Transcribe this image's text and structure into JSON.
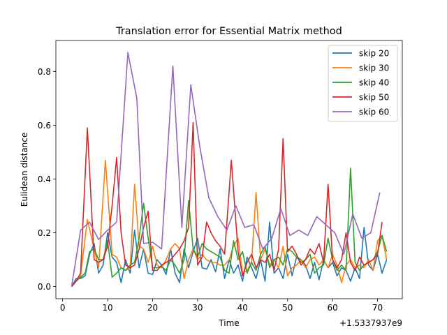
{
  "chart_data": {
    "type": "line",
    "title": "Translation error for Essential Matrix method",
    "xlabel": "Time",
    "ylabel": "Eulidean distance",
    "x_offset_text": "+1.5337937e9",
    "xlim": [
      -1.5,
      75.5
    ],
    "ylim": [
      -0.045,
      0.915
    ],
    "xticks": [
      0,
      10,
      20,
      30,
      40,
      50,
      60,
      70
    ],
    "yticks": [
      0.0,
      0.2,
      0.4,
      0.6,
      0.8
    ],
    "ytick_labels": [
      "0.0",
      "0.2",
      "0.4",
      "0.6",
      "0.8"
    ],
    "grid": false,
    "legend_position": "top-right",
    "series": [
      {
        "name": "skip 20",
        "color": "#1f77b4",
        "x": [
          2,
          3,
          4,
          5,
          6,
          7,
          8,
          9,
          10,
          11,
          12,
          13,
          14,
          15,
          16,
          17,
          18,
          19,
          20,
          21,
          22,
          23,
          24,
          25,
          26,
          27,
          28,
          29,
          30,
          31,
          32,
          33,
          34,
          35,
          36,
          37,
          38,
          39,
          40,
          41,
          42,
          43,
          44,
          45,
          46,
          47,
          48,
          49,
          50,
          51,
          52,
          53,
          54,
          55,
          56,
          57,
          58,
          59,
          60,
          61,
          62,
          63,
          64,
          65,
          66,
          67,
          68,
          69,
          70,
          71,
          72
        ],
        "values": [
          0.0,
          0.03,
          0.03,
          0.04,
          0.12,
          0.16,
          0.05,
          0.08,
          0.2,
          0.11,
          0.09,
          0.015,
          0.1,
          0.05,
          0.21,
          0.07,
          0.14,
          0.05,
          0.045,
          0.1,
          0.08,
          0.045,
          0.14,
          0.05,
          0.015,
          0.14,
          0.07,
          0.13,
          0.18,
          0.07,
          0.065,
          0.1,
          0.055,
          0.14,
          0.03,
          0.1,
          0.05,
          0.08,
          0.02,
          0.11,
          0.07,
          0.03,
          0.1,
          0.02,
          0.24,
          0.05,
          0.07,
          0.03,
          0.12,
          0.04,
          0.11,
          0.1,
          0.08,
          0.03,
          0.09,
          0.025,
          0.1,
          0.07,
          0.09,
          0.04,
          0.07,
          0.06,
          0.02,
          0.07,
          0.03,
          0.22,
          0.08,
          0.06,
          0.12,
          0.05,
          0.1
        ]
      },
      {
        "name": "skip 30",
        "color": "#ff7f0e",
        "x": [
          2,
          4,
          5.5,
          7,
          8,
          9.5,
          11,
          12,
          13,
          14,
          15,
          16,
          17,
          18,
          19,
          20,
          21,
          22,
          23,
          24,
          25,
          26,
          27,
          28,
          29,
          30,
          31,
          32,
          33,
          34,
          35,
          36,
          37,
          38,
          39,
          40,
          41,
          42,
          43,
          44,
          45,
          46,
          47,
          48,
          49,
          50,
          51,
          52,
          53,
          54,
          55,
          56,
          57,
          58,
          59,
          60,
          61,
          62,
          63,
          64,
          65,
          66,
          67,
          68,
          69,
          70,
          71,
          72
        ],
        "values": [
          0.0,
          0.04,
          0.25,
          0.14,
          0.07,
          0.47,
          0.12,
          0.11,
          0.07,
          0.06,
          0.07,
          0.38,
          0.15,
          0.14,
          0.09,
          0.15,
          0.08,
          0.07,
          0.1,
          0.14,
          0.16,
          0.14,
          0.03,
          0.1,
          0.14,
          0.1,
          0.12,
          0.1,
          0.09,
          0.09,
          0.08,
          0.08,
          0.1,
          0.15,
          0.18,
          0.05,
          0.06,
          0.09,
          0.35,
          0.1,
          0.14,
          0.08,
          0.1,
          0.07,
          0.15,
          0.04,
          0.07,
          0.08,
          0.1,
          0.07,
          0.1,
          0.11,
          0.08,
          0.1,
          0.07,
          0.12,
          0.08,
          0.015,
          0.08,
          0.1,
          0.07,
          0.08,
          0.07,
          0.1,
          0.06,
          0.17,
          0.19,
          0.1
        ]
      },
      {
        "name": "skip 40",
        "color": "#2ca02c",
        "x": [
          2,
          3,
          4,
          5,
          6,
          7,
          8,
          9,
          10,
          11,
          12,
          13,
          14,
          15,
          16,
          17,
          18,
          19,
          20,
          21,
          22,
          23,
          24,
          25,
          26,
          27,
          28,
          29,
          30,
          31,
          32,
          33,
          34,
          35,
          36,
          37,
          38,
          39,
          40,
          41,
          42,
          43,
          44,
          45,
          46,
          47,
          48,
          49,
          50,
          51,
          52,
          53,
          54,
          55,
          56,
          57,
          58,
          59,
          60,
          61,
          62,
          63,
          64,
          65,
          66,
          67,
          68,
          69,
          70,
          71,
          72
        ],
        "values": [
          0.0,
          0.02,
          0.035,
          0.05,
          0.13,
          0.14,
          0.1,
          0.1,
          0.17,
          0.035,
          0.05,
          0.07,
          0.06,
          0.08,
          0.09,
          0.18,
          0.31,
          0.18,
          0.07,
          0.07,
          0.075,
          0.06,
          0.1,
          0.08,
          0.05,
          0.1,
          0.32,
          0.14,
          0.11,
          0.16,
          0.14,
          0.13,
          0.12,
          0.11,
          0.06,
          0.05,
          0.17,
          0.1,
          0.13,
          0.05,
          0.09,
          0.06,
          0.12,
          0.15,
          0.07,
          0.1,
          0.11,
          0.08,
          0.14,
          0.13,
          0.11,
          0.09,
          0.1,
          0.12,
          0.05,
          0.07,
          0.08,
          0.18,
          0.1,
          0.06,
          0.08,
          0.06,
          0.44,
          0.09,
          0.06,
          0.08,
          0.09,
          0.1,
          0.13,
          0.19,
          0.13
        ]
      },
      {
        "name": "skip 50",
        "color": "#d62728",
        "x": [
          2,
          3,
          4,
          5.5,
          7,
          8,
          9,
          10,
          11,
          12,
          13,
          14,
          15,
          16,
          17,
          18,
          19,
          20,
          21,
          22,
          23,
          24,
          25,
          26,
          27,
          28,
          29,
          30,
          31,
          32,
          33,
          34,
          35,
          36,
          37.5,
          39,
          40,
          41,
          42,
          43,
          44,
          45,
          46,
          47,
          48,
          49,
          50,
          51,
          52,
          53,
          54,
          55,
          56,
          57,
          58,
          59,
          60,
          61,
          62,
          63,
          64,
          65,
          66,
          67,
          68,
          69,
          70,
          71
        ],
        "values": [
          0.0,
          0.02,
          0.05,
          0.59,
          0.1,
          0.09,
          0.1,
          0.15,
          0.3,
          0.48,
          0.2,
          0.08,
          0.07,
          0.08,
          0.14,
          0.22,
          0.28,
          0.06,
          0.06,
          0.08,
          0.09,
          0.1,
          0.12,
          0.14,
          0.17,
          0.22,
          0.61,
          0.08,
          0.11,
          0.24,
          0.2,
          0.17,
          0.15,
          0.12,
          0.47,
          0.13,
          0.04,
          0.09,
          0.12,
          0.07,
          0.1,
          0.09,
          0.12,
          0.06,
          0.14,
          0.55,
          0.13,
          0.15,
          0.12,
          0.08,
          0.1,
          0.14,
          0.12,
          0.16,
          0.09,
          0.38,
          0.1,
          0.07,
          0.1,
          0.2,
          0.09,
          0.06,
          0.11,
          0.08,
          0.09,
          0.1,
          0.12,
          0.24
        ]
      },
      {
        "name": "skip 60",
        "color": "#9467bd",
        "x": [
          2,
          4,
          6,
          8,
          10,
          12,
          14.5,
          16.5,
          18,
          20,
          22,
          24.5,
          26.5,
          28.5,
          30.5,
          32.5,
          34.5,
          36.5,
          38.5,
          40.5,
          42.5,
          44.5,
          46.5,
          48.5,
          50.5,
          52.5,
          54.5,
          56.5,
          58.5,
          60.5,
          62.5,
          64.5,
          66.5,
          68.5,
          70.5
        ],
        "values": [
          0.0,
          0.21,
          0.24,
          0.175,
          0.21,
          0.24,
          0.87,
          0.7,
          0.16,
          0.165,
          0.14,
          0.82,
          0.22,
          0.75,
          0.52,
          0.33,
          0.26,
          0.21,
          0.3,
          0.22,
          0.23,
          0.14,
          0.18,
          0.29,
          0.19,
          0.21,
          0.19,
          0.26,
          0.23,
          0.2,
          0.12,
          0.27,
          0.18,
          0.2,
          0.35
        ]
      }
    ]
  }
}
